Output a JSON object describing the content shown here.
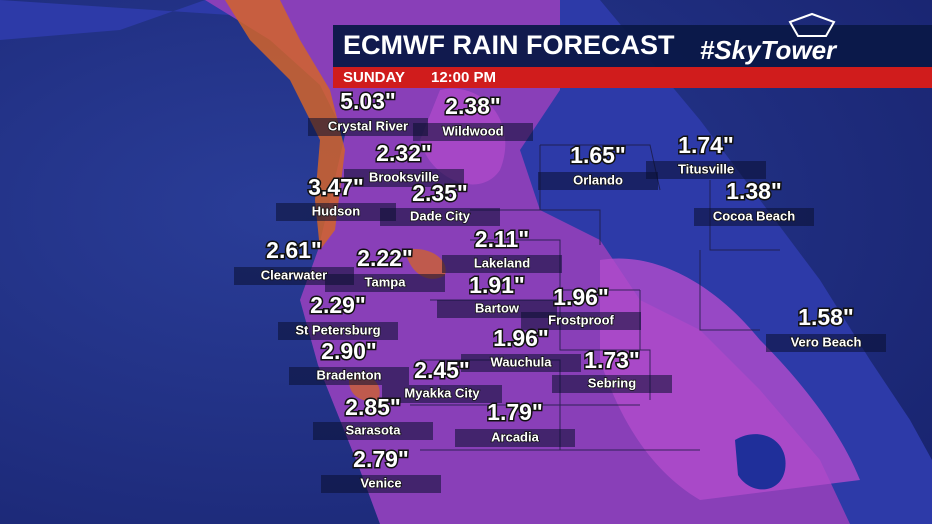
{
  "header": {
    "title": "ECMWF RAIN FORECAST",
    "brand": "#SkyTower",
    "day": "SUNDAY",
    "time": "12:00 PM"
  },
  "cities": [
    {
      "value": "5.03\"",
      "name": "Crystal River"
    },
    {
      "value": "2.38\"",
      "name": "Wildwood"
    },
    {
      "value": "2.32\"",
      "name": "Brooksville"
    },
    {
      "value": "3.47\"",
      "name": "Hudson"
    },
    {
      "value": "2.35\"",
      "name": "Dade City"
    },
    {
      "value": "2.61\"",
      "name": "Clearwater"
    },
    {
      "value": "2.22\"",
      "name": "Tampa"
    },
    {
      "value": "2.11\"",
      "name": "Lakeland"
    },
    {
      "value": "1.91\"",
      "name": "Bartow"
    },
    {
      "value": "1.96\"",
      "name": "Frostproof"
    },
    {
      "value": "2.29\"",
      "name": "St Petersburg"
    },
    {
      "value": "1.96\"",
      "name": "Wauchula"
    },
    {
      "value": "2.90\"",
      "name": "Bradenton"
    },
    {
      "value": "2.45\"",
      "name": "Myakka City"
    },
    {
      "value": "1.73\"",
      "name": "Sebring"
    },
    {
      "value": "2.85\"",
      "name": "Sarasota"
    },
    {
      "value": "1.79\"",
      "name": "Arcadia"
    },
    {
      "value": "2.79\"",
      "name": "Venice"
    },
    {
      "value": "1.65\"",
      "name": "Orlando"
    },
    {
      "value": "1.74\"",
      "name": "Titusville"
    },
    {
      "value": "1.38\"",
      "name": "Cocoa Beach"
    },
    {
      "value": "1.58\"",
      "name": "Vero Beach"
    }
  ]
}
